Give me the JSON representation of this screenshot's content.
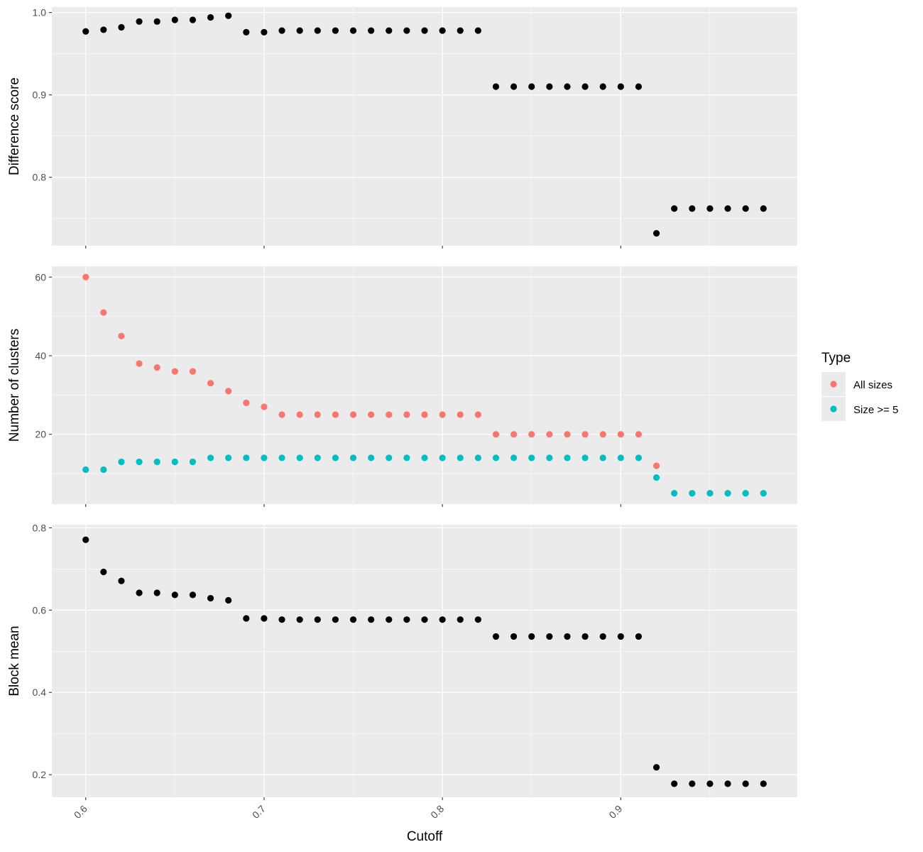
{
  "chart_data": {
    "type": "scatter",
    "xlabel": "Cutoff",
    "x_ticks": [
      0.6,
      0.7,
      0.8,
      0.9
    ],
    "x_tick_labels": [
      "0.6",
      "0.7",
      "0.8",
      "0.9"
    ],
    "xlim": [
      0.581,
      0.999
    ],
    "grid": true,
    "legend": {
      "title": "Type",
      "placement": "right",
      "entries": [
        {
          "name": "All sizes",
          "color": "#F8766D"
        },
        {
          "name": "Size >= 5",
          "color": "#00BFC4"
        }
      ]
    },
    "panels": [
      {
        "ylabel": "Difference score",
        "ylim": [
          0.717,
          1.0065
        ],
        "y_ticks": [
          0.8,
          0.9,
          1.0
        ],
        "y_tick_labels": [
          "0.8",
          "0.9",
          "1.0"
        ],
        "series": [
          {
            "color": "#000000",
            "x": [
              0.6,
              0.61,
              0.62,
              0.63,
              0.64,
              0.65,
              0.66,
              0.67,
              0.68,
              0.69,
              0.7,
              0.71,
              0.72,
              0.73,
              0.74,
              0.75,
              0.76,
              0.77,
              0.78,
              0.79,
              0.8,
              0.81,
              0.82,
              0.83,
              0.84,
              0.85,
              0.86,
              0.87,
              0.88,
              0.89,
              0.9,
              0.91,
              0.92,
              0.93,
              0.94,
              0.95,
              0.96,
              0.97,
              0.98
            ],
            "y": [
              0.977,
              0.979,
              0.982,
              0.989,
              0.989,
              0.991,
              0.991,
              0.994,
              0.996,
              0.976,
              0.976,
              0.978,
              0.978,
              0.978,
              0.978,
              0.978,
              0.978,
              0.978,
              0.978,
              0.978,
              0.978,
              0.978,
              0.978,
              0.91,
              0.91,
              0.91,
              0.91,
              0.91,
              0.91,
              0.91,
              0.91,
              0.91,
              0.732,
              0.762,
              0.762,
              0.762,
              0.762,
              0.762,
              0.762
            ]
          }
        ]
      },
      {
        "ylabel": "Number of clusters",
        "ylim": [
          2.24,
          62.76
        ],
        "y_ticks": [
          20,
          40,
          60
        ],
        "y_tick_labels": [
          "20",
          "40",
          "60"
        ],
        "series": [
          {
            "name": "All sizes",
            "color": "#F8766D",
            "x": [
              0.6,
              0.61,
              0.62,
              0.63,
              0.64,
              0.65,
              0.66,
              0.67,
              0.68,
              0.69,
              0.7,
              0.71,
              0.72,
              0.73,
              0.74,
              0.75,
              0.76,
              0.77,
              0.78,
              0.79,
              0.8,
              0.81,
              0.82,
              0.83,
              0.84,
              0.85,
              0.86,
              0.87,
              0.88,
              0.89,
              0.9,
              0.91,
              0.92,
              0.93,
              0.94,
              0.95,
              0.96,
              0.97,
              0.98
            ],
            "y": [
              60,
              51,
              45,
              38,
              37,
              36,
              36,
              33,
              31,
              28,
              27,
              25,
              25,
              25,
              25,
              25,
              25,
              25,
              25,
              25,
              25,
              25,
              25,
              20,
              20,
              20,
              20,
              20,
              20,
              20,
              20,
              20,
              12,
              5,
              5,
              5,
              5,
              5,
              5
            ]
          },
          {
            "name": "Size >= 5",
            "color": "#00BFC4",
            "x": [
              0.6,
              0.61,
              0.62,
              0.63,
              0.64,
              0.65,
              0.66,
              0.67,
              0.68,
              0.69,
              0.7,
              0.71,
              0.72,
              0.73,
              0.74,
              0.75,
              0.76,
              0.77,
              0.78,
              0.79,
              0.8,
              0.81,
              0.82,
              0.83,
              0.84,
              0.85,
              0.86,
              0.87,
              0.88,
              0.89,
              0.9,
              0.91,
              0.92,
              0.93,
              0.94,
              0.95,
              0.96,
              0.97,
              0.98
            ],
            "y": [
              11,
              11,
              13,
              13,
              13,
              13,
              13,
              14,
              14,
              14,
              14,
              14,
              14,
              14,
              14,
              14,
              14,
              14,
              14,
              14,
              14,
              14,
              14,
              14,
              14,
              14,
              14,
              14,
              14,
              14,
              14,
              14,
              9,
              5,
              5,
              5,
              5,
              5,
              5
            ]
          }
        ]
      },
      {
        "ylabel": "Block mean",
        "ylim": [
          0.145,
          0.8077
        ],
        "y_ticks": [
          0.2,
          0.4,
          0.6,
          0.8
        ],
        "y_tick_labels": [
          "0.2",
          "0.4",
          "0.6",
          "0.8"
        ],
        "series": [
          {
            "color": "#000000",
            "x": [
              0.6,
              0.61,
              0.62,
              0.63,
              0.64,
              0.65,
              0.66,
              0.67,
              0.68,
              0.69,
              0.7,
              0.71,
              0.72,
              0.73,
              0.74,
              0.75,
              0.76,
              0.77,
              0.78,
              0.79,
              0.8,
              0.81,
              0.82,
              0.83,
              0.84,
              0.85,
              0.86,
              0.87,
              0.88,
              0.89,
              0.9,
              0.91,
              0.92,
              0.93,
              0.94,
              0.95,
              0.96,
              0.97,
              0.98
            ],
            "y": [
              0.771,
              0.693,
              0.671,
              0.642,
              0.642,
              0.637,
              0.637,
              0.629,
              0.624,
              0.58,
              0.58,
              0.577,
              0.577,
              0.577,
              0.577,
              0.577,
              0.577,
              0.577,
              0.577,
              0.577,
              0.577,
              0.577,
              0.577,
              0.536,
              0.536,
              0.536,
              0.536,
              0.536,
              0.536,
              0.536,
              0.536,
              0.536,
              0.218,
              0.178,
              0.178,
              0.178,
              0.178,
              0.178,
              0.178
            ]
          }
        ]
      }
    ]
  }
}
